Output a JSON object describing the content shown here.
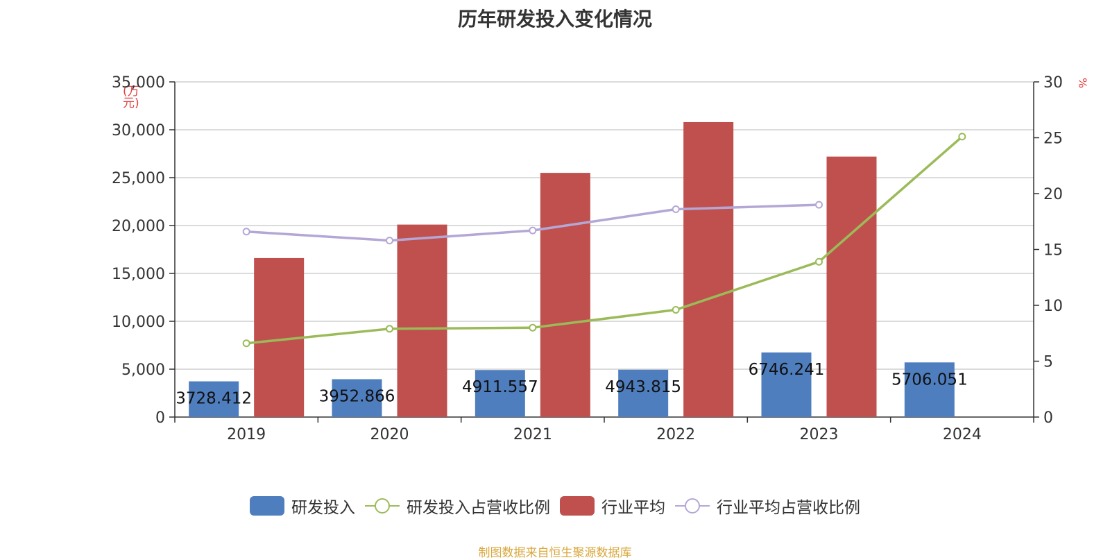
{
  "chart_data": {
    "type": "bar",
    "title": "历年研发投入变化情况",
    "categories": [
      "2019",
      "2020",
      "2021",
      "2022",
      "2023",
      "2024"
    ],
    "y_left": {
      "unit": "(万元)",
      "ylim": [
        0,
        35000
      ],
      "ticks": [
        0,
        5000,
        10000,
        15000,
        20000,
        25000,
        30000,
        35000
      ],
      "tick_labels": [
        "0",
        "5,000",
        "10,000",
        "15,000",
        "20,000",
        "25,000",
        "30,000",
        "35,000"
      ]
    },
    "y_right": {
      "unit": "%",
      "ylim": [
        0,
        30
      ],
      "ticks": [
        0,
        5,
        10,
        15,
        20,
        25,
        30
      ],
      "tick_labels": [
        "0",
        "5",
        "10",
        "15",
        "20",
        "25",
        "30"
      ]
    },
    "grid": true,
    "legend_position": "bottom",
    "series": [
      {
        "name": "研发投入",
        "type": "bar",
        "axis": "left",
        "color": "#4f7ebf",
        "values": [
          3728.412,
          3952.866,
          4911.557,
          4943.815,
          6746.241,
          5706.051
        ],
        "labels": [
          "3728.412",
          "3952.866",
          "4911.557",
          "4943.815",
          "6746.241",
          "5706.051"
        ]
      },
      {
        "name": "研发投入占营收比例",
        "type": "line",
        "axis": "right",
        "color": "#9bbb59",
        "values": [
          6.6,
          7.9,
          8.0,
          9.6,
          13.9,
          25.1
        ]
      },
      {
        "name": "行业平均",
        "type": "bar",
        "axis": "left",
        "color": "#c0504d",
        "values": [
          16600,
          20100,
          25500,
          30800,
          27200,
          null
        ]
      },
      {
        "name": "行业平均占营收比例",
        "type": "line",
        "axis": "right",
        "color": "#b4a7d6",
        "values": [
          16.6,
          15.8,
          16.7,
          18.6,
          19.0,
          null
        ]
      }
    ]
  },
  "source_note": "制图数据来自恒生聚源数据库"
}
